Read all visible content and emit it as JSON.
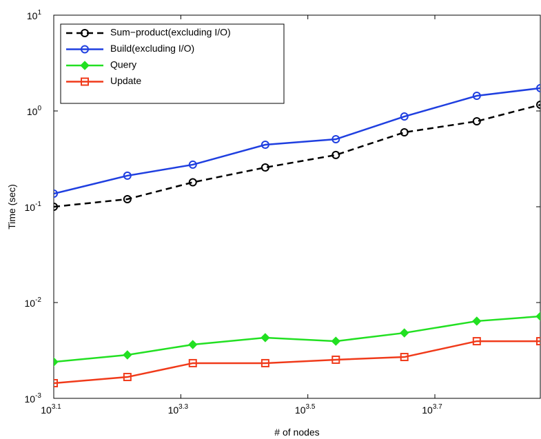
{
  "chart_data": {
    "type": "line",
    "x_label": "# of nodes",
    "y_label": "Time (sec)",
    "xscale": "log",
    "yscale": "log",
    "x": [
      1259,
      1644,
      2084,
      2710,
      3500,
      4487,
      5834,
      7345
    ],
    "xlim": [
      1258.9,
      7345
    ],
    "xticks": [
      {
        "value": 1258.9,
        "label": "10",
        "sup": "3.1"
      },
      {
        "value": 1995.3,
        "label": "10",
        "sup": "3.3"
      },
      {
        "value": 3162.3,
        "label": "10",
        "sup": "3.5"
      },
      {
        "value": 5011.9,
        "label": "10",
        "sup": "3.7"
      }
    ],
    "ylim": [
      0.001,
      10
    ],
    "yticks": [
      {
        "value": 0.001,
        "label": "10",
        "sup": "-3"
      },
      {
        "value": 0.01,
        "label": "10",
        "sup": "-2"
      },
      {
        "value": 0.1,
        "label": "10",
        "sup": "-1"
      },
      {
        "value": 1,
        "label": "10",
        "sup": "0"
      },
      {
        "value": 10,
        "label": "10",
        "sup": "1"
      }
    ],
    "legend": "upper left",
    "series": [
      {
        "name": "Sum−product(excluding I/O)",
        "color": "#000000",
        "dash": true,
        "marker": "circle",
        "values": [
          0.1,
          0.12,
          0.18,
          0.257,
          0.347,
          0.598,
          0.78,
          1.16
        ]
      },
      {
        "name": "Build(excluding I/O)",
        "color": "#1f3fe0",
        "dash": false,
        "marker": "circle",
        "values": [
          0.137,
          0.211,
          0.275,
          0.444,
          0.507,
          0.875,
          1.44,
          1.73
        ]
      },
      {
        "name": "Query",
        "color": "#22e022",
        "dash": false,
        "marker": "diamond",
        "values": [
          0.0024,
          0.00284,
          0.00364,
          0.0043,
          0.00395,
          0.00482,
          0.0064,
          0.00718
        ]
      },
      {
        "name": "Update",
        "color": "#f03a1a",
        "dash": false,
        "marker": "square",
        "values": [
          0.00144,
          0.00167,
          0.00233,
          0.00233,
          0.00253,
          0.0027,
          0.00395,
          0.00395
        ]
      }
    ]
  }
}
